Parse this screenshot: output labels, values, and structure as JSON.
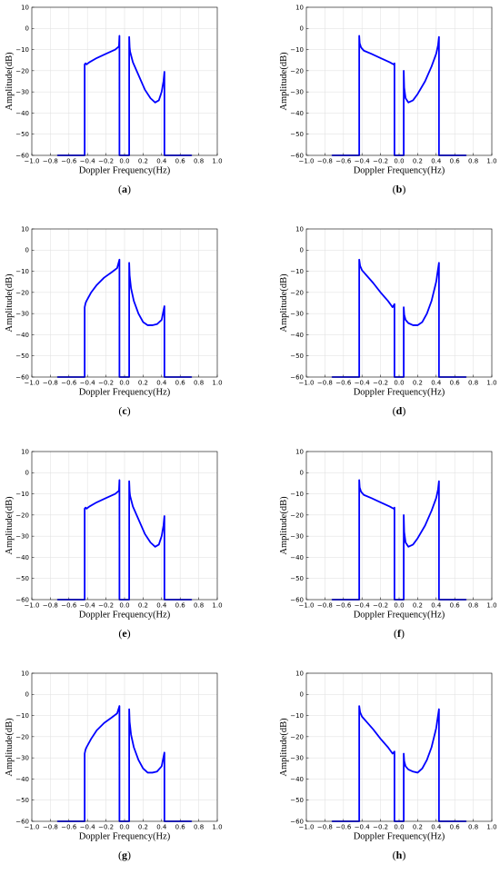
{
  "figure": {
    "panels": [
      "(a)",
      "(b)",
      "(c)",
      "(d)",
      "(e)",
      "(f)",
      "(g)",
      "(h)"
    ]
  },
  "colors": {
    "series": "#0000ff",
    "grid": "#e3e3e3",
    "axis": "#000000"
  },
  "chart_data": [
    {
      "panel": "(a)",
      "type": "line",
      "xlabel": "Doppler Frequency(Hz)",
      "ylabel": "Amplitude(dB)",
      "xlim": [
        -1.0,
        1.0
      ],
      "ylim": [
        -60,
        10
      ],
      "xticks": [
        "−1.0",
        "−0.8",
        "−0.6",
        "−0.4",
        "−0.2",
        "0.0",
        "0.2",
        "0.4",
        "0.6",
        "0.8",
        "1.0"
      ],
      "yticks": [
        "10",
        "0",
        "−10",
        "−20",
        "−30",
        "−40",
        "−50",
        "−60"
      ],
      "grid": true,
      "series": [
        {
          "x": [
            -0.72,
            -0.43,
            -0.43,
            -0.42,
            -0.41,
            -0.38,
            -0.3,
            -0.2,
            -0.1,
            -0.06,
            -0.055,
            -0.055,
            -0.05,
            0.05,
            0.05,
            0.055,
            0.06,
            0.09,
            0.15,
            0.22,
            0.28,
            0.33,
            0.37,
            0.4,
            0.42,
            0.43,
            0.43,
            0.72
          ],
          "y": [
            -60,
            -60,
            -17,
            -16.5,
            -17,
            -16,
            -14,
            -12,
            -10,
            -8.5,
            -3.5,
            -60,
            -60,
            -60,
            -4,
            -9,
            -11,
            -16,
            -22,
            -29,
            -33,
            -35,
            -34,
            -30,
            -25,
            -20.5,
            -60,
            -60
          ]
        }
      ]
    },
    {
      "panel": "(b)",
      "type": "line",
      "xlabel": "Doppler Frequency(Hz)",
      "ylabel": "Amplitude(dB)",
      "xlim": [
        -1.0,
        1.0
      ],
      "ylim": [
        -60,
        10
      ],
      "xticks": [
        "−1.0",
        "−0.8",
        "−0.6",
        "−0.4",
        "−0.2",
        "0.0",
        "0.2",
        "0.4",
        "0.6",
        "0.8",
        "1.0"
      ],
      "yticks": [
        "10",
        "0",
        "−10",
        "−20",
        "−30",
        "−40",
        "−50",
        "−60"
      ],
      "grid": true,
      "series": [
        {
          "x": [
            -0.72,
            -0.43,
            -0.43,
            -0.425,
            -0.41,
            -0.38,
            -0.3,
            -0.2,
            -0.1,
            -0.06,
            -0.05,
            -0.05,
            0.05,
            0.05,
            0.055,
            0.07,
            0.1,
            0.15,
            0.2,
            0.28,
            0.35,
            0.4,
            0.42,
            0.43,
            0.43,
            0.72
          ],
          "y": [
            -60,
            -60,
            -3.5,
            -7,
            -9,
            -10.5,
            -12,
            -14,
            -16,
            -17,
            -16.5,
            -60,
            -60,
            -20,
            -28,
            -33,
            -35,
            -34,
            -31,
            -25,
            -18,
            -12,
            -8,
            -4,
            -60,
            -60
          ]
        }
      ]
    },
    {
      "panel": "(c)",
      "type": "line",
      "xlabel": "Doppler Frequency(Hz)",
      "ylabel": "Amplitude(dB)",
      "xlim": [
        -1.0,
        1.0
      ],
      "ylim": [
        -60,
        10
      ],
      "xticks": [
        "−1.0",
        "−0.8",
        "−0.6",
        "−0.4",
        "−0.2",
        "0.0",
        "0.2",
        "0.4",
        "0.6",
        "0.8",
        "1.0"
      ],
      "yticks": [
        "10",
        "0",
        "−10",
        "−20",
        "−30",
        "−40",
        "−50",
        "−60"
      ],
      "grid": true,
      "series": [
        {
          "x": [
            -0.72,
            -0.43,
            -0.43,
            -0.42,
            -0.41,
            -0.36,
            -0.3,
            -0.22,
            -0.14,
            -0.08,
            -0.055,
            -0.055,
            -0.05,
            0.05,
            0.05,
            0.055,
            0.07,
            0.1,
            0.15,
            0.2,
            0.25,
            0.3,
            0.35,
            0.4,
            0.43,
            0.43,
            0.72
          ],
          "y": [
            -60,
            -60,
            -27,
            -25,
            -24,
            -20,
            -16.5,
            -13,
            -10.5,
            -8.5,
            -4.5,
            -60,
            -60,
            -60,
            -6,
            -12,
            -18,
            -24,
            -30,
            -34,
            -35.5,
            -35.5,
            -35,
            -33,
            -26.5,
            -60,
            -60
          ]
        }
      ]
    },
    {
      "panel": "(d)",
      "type": "line",
      "xlabel": "Doppler Frequency(Hz)",
      "ylabel": "Amplitude(dB)",
      "xlim": [
        -1.0,
        1.0
      ],
      "ylim": [
        -60,
        10
      ],
      "xticks": [
        "−1.0",
        "−0.8",
        "−0.6",
        "−0.4",
        "−0.2",
        "0.0",
        "0.2",
        "0.4",
        "0.6",
        "0.8",
        "1.0"
      ],
      "yticks": [
        "10",
        "0",
        "−10",
        "−20",
        "−30",
        "−40",
        "−50",
        "−60"
      ],
      "grid": true,
      "series": [
        {
          "x": [
            -0.72,
            -0.43,
            -0.43,
            -0.42,
            -0.4,
            -0.35,
            -0.28,
            -0.2,
            -0.12,
            -0.07,
            -0.05,
            -0.05,
            0.05,
            0.05,
            0.055,
            0.07,
            0.1,
            0.15,
            0.2,
            0.25,
            0.3,
            0.35,
            0.4,
            0.43,
            0.43,
            0.72
          ],
          "y": [
            -60,
            -60,
            -4.5,
            -7.5,
            -9.5,
            -12,
            -15.5,
            -20,
            -24,
            -27,
            -25.5,
            -60,
            -60,
            -27,
            -30.5,
            -33,
            -34.5,
            -35.5,
            -35.5,
            -34,
            -30,
            -24,
            -15,
            -6,
            -60,
            -60
          ]
        }
      ]
    },
    {
      "panel": "(e)",
      "type": "line",
      "xlabel": "Doppler Frequency(Hz)",
      "ylabel": "Amplitude(dB)",
      "xlim": [
        -1.0,
        1.0
      ],
      "ylim": [
        -60,
        10
      ],
      "xticks": [
        "−1.0",
        "−0.8",
        "−0.6",
        "−0.4",
        "−0.2",
        "0.0",
        "0.2",
        "0.4",
        "0.6",
        "0.8",
        "1.0"
      ],
      "yticks": [
        "10",
        "0",
        "−10",
        "−20",
        "−30",
        "−40",
        "−50",
        "−60"
      ],
      "grid": true,
      "series": [
        {
          "x": [
            -0.72,
            -0.43,
            -0.43,
            -0.42,
            -0.41,
            -0.38,
            -0.3,
            -0.2,
            -0.1,
            -0.06,
            -0.055,
            -0.055,
            -0.05,
            0.05,
            0.05,
            0.055,
            0.06,
            0.09,
            0.15,
            0.22,
            0.28,
            0.33,
            0.37,
            0.4,
            0.42,
            0.43,
            0.43,
            0.72
          ],
          "y": [
            -60,
            -60,
            -17,
            -16.5,
            -17,
            -16,
            -14,
            -12,
            -10,
            -8.5,
            -3.5,
            -60,
            -60,
            -60,
            -4,
            -9,
            -11,
            -16,
            -22,
            -29,
            -33,
            -35,
            -34,
            -30,
            -25,
            -20.5,
            -60,
            -60
          ]
        }
      ]
    },
    {
      "panel": "(f)",
      "type": "line",
      "xlabel": "Doppler Frequency(Hz)",
      "ylabel": "Amplitude(dB)",
      "xlim": [
        -1.0,
        1.0
      ],
      "ylim": [
        -60,
        10
      ],
      "xticks": [
        "−1.0",
        "−0.8",
        "−0.6",
        "−0.4",
        "−0.2",
        "0.0",
        "0.2",
        "0.4",
        "0.6",
        "0.8",
        "1.0"
      ],
      "yticks": [
        "10",
        "0",
        "−10",
        "−20",
        "−30",
        "−40",
        "−50",
        "−60"
      ],
      "grid": true,
      "series": [
        {
          "x": [
            -0.72,
            -0.43,
            -0.43,
            -0.425,
            -0.41,
            -0.38,
            -0.3,
            -0.2,
            -0.1,
            -0.06,
            -0.05,
            -0.05,
            0.05,
            0.05,
            0.055,
            0.07,
            0.1,
            0.15,
            0.2,
            0.28,
            0.35,
            0.4,
            0.42,
            0.43,
            0.43,
            0.72
          ],
          "y": [
            -60,
            -60,
            -3.5,
            -7,
            -9,
            -10.5,
            -12,
            -14,
            -16,
            -17,
            -16.5,
            -60,
            -60,
            -20,
            -28,
            -33,
            -35,
            -34,
            -31,
            -25,
            -18,
            -12,
            -8,
            -4,
            -60,
            -60
          ]
        }
      ]
    },
    {
      "panel": "(g)",
      "type": "line",
      "xlabel": "Doppler Frequency(Hz)",
      "ylabel": "Amplitude(dB)",
      "xlim": [
        -1.0,
        1.0
      ],
      "ylim": [
        -60,
        10
      ],
      "xticks": [
        "−1.0",
        "−0.8",
        "−0.6",
        "−0.4",
        "−0.2",
        "0.0",
        "0.2",
        "0.4",
        "0.6",
        "0.8",
        "1.0"
      ],
      "yticks": [
        "10",
        "0",
        "−10",
        "−20",
        "−30",
        "−40",
        "−50",
        "−60"
      ],
      "grid": true,
      "series": [
        {
          "x": [
            -0.72,
            -0.43,
            -0.43,
            -0.42,
            -0.41,
            -0.36,
            -0.3,
            -0.22,
            -0.14,
            -0.08,
            -0.055,
            -0.055,
            -0.05,
            0.05,
            0.05,
            0.055,
            0.07,
            0.1,
            0.15,
            0.2,
            0.25,
            0.3,
            0.35,
            0.4,
            0.43,
            0.43,
            0.72
          ],
          "y": [
            -60,
            -60,
            -28,
            -26,
            -25,
            -21,
            -17,
            -13.5,
            -11,
            -9,
            -5.5,
            -60,
            -60,
            -60,
            -7,
            -13,
            -19,
            -25,
            -31,
            -35,
            -37,
            -37,
            -36.5,
            -34,
            -27.5,
            -60,
            -60
          ]
        }
      ]
    },
    {
      "panel": "(h)",
      "type": "line",
      "xlabel": "Doppler Frequency(Hz)",
      "ylabel": "Amplitude(dB)",
      "xlim": [
        -1.0,
        1.0
      ],
      "ylim": [
        -60,
        10
      ],
      "xticks": [
        "−1.0",
        "−0.8",
        "−0.6",
        "−0.4",
        "−0.2",
        "0.0",
        "0.2",
        "0.4",
        "0.6",
        "0.8",
        "1.0"
      ],
      "yticks": [
        "10",
        "0",
        "−10",
        "−20",
        "−30",
        "−40",
        "−50",
        "−60"
      ],
      "grid": true,
      "series": [
        {
          "x": [
            -0.72,
            -0.43,
            -0.43,
            -0.42,
            -0.4,
            -0.35,
            -0.28,
            -0.2,
            -0.12,
            -0.07,
            -0.05,
            -0.05,
            0.05,
            0.05,
            0.055,
            0.07,
            0.1,
            0.15,
            0.2,
            0.25,
            0.3,
            0.35,
            0.4,
            0.43,
            0.43,
            0.72
          ],
          "y": [
            -60,
            -60,
            -5.5,
            -8.5,
            -10.5,
            -13,
            -16.5,
            -21,
            -25,
            -28,
            -27,
            -60,
            -60,
            -28,
            -31.5,
            -34,
            -35.5,
            -36.5,
            -37,
            -35,
            -31,
            -25,
            -16,
            -7,
            -60,
            -60
          ]
        }
      ]
    }
  ]
}
